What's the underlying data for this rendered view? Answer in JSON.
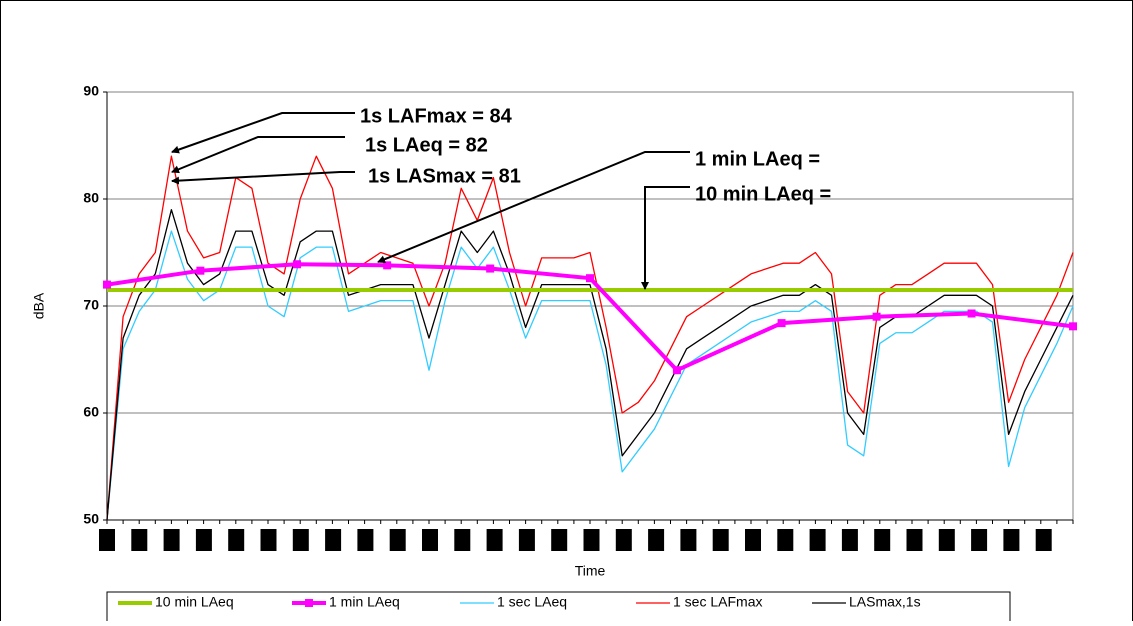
{
  "chart_data": {
    "type": "line",
    "y_label": "dBA",
    "x_label": "Time",
    "xlim": [
      0,
      600
    ],
    "ylim": [
      50,
      90
    ],
    "yticks": [
      50,
      60,
      70,
      80,
      90
    ],
    "grid": true,
    "legend": "bottom",
    "annotations": [
      "1s LAFmax =  84",
      "1s LAeq = 82",
      "1s LASmax =  81",
      "1 min LAeq =",
      "10 min LAeq ="
    ],
    "series": [
      {
        "name": "10 min LAeq",
        "color": "#99cc00",
        "x": [
          0,
          600
        ],
        "values": [
          71.5,
          71.5
        ]
      },
      {
        "name": "1 min LAeq",
        "color": "#ff00ff",
        "markers": true,
        "x": [
          0,
          58,
          118,
          174,
          238,
          300,
          354,
          419,
          478,
          537,
          600
        ],
        "values": [
          72,
          73.3,
          73.9,
          73.8,
          73.5,
          72.6,
          64,
          68.4,
          69,
          69.3,
          68.1
        ]
      },
      {
        "name": "1 sec LAeq",
        "color": "#33ccff",
        "x": [
          0,
          10,
          20,
          30,
          40,
          50,
          60,
          70,
          80,
          90,
          100,
          110,
          120,
          130,
          140,
          150,
          160,
          170,
          180,
          190,
          200,
          210,
          220,
          230,
          240,
          250,
          260,
          270,
          280,
          290,
          300,
          310,
          320,
          330,
          340,
          350,
          360,
          370,
          380,
          390,
          400,
          410,
          420,
          430,
          440,
          450,
          460,
          470,
          480,
          490,
          500,
          510,
          520,
          530,
          540,
          550,
          560,
          570,
          580,
          590,
          600
        ],
        "values": [
          50,
          66,
          69.5,
          71.5,
          77,
          72.5,
          70.5,
          71.5,
          75.5,
          75.5,
          70,
          69,
          74.5,
          75.5,
          75.5,
          69.5,
          70,
          70.5,
          70.5,
          70.5,
          64,
          70.5,
          75.5,
          73.5,
          75.5,
          71.5,
          67,
          70.5,
          70.5,
          70.5,
          70.5,
          64.5,
          54.5,
          56.5,
          58.5,
          61.5,
          64.5,
          65.5,
          66.5,
          67.5,
          68.5,
          69,
          69.5,
          69.5,
          70.5,
          69.5,
          57,
          56,
          66.5,
          67.5,
          67.5,
          68.5,
          69.5,
          69.5,
          69.5,
          68.5,
          55,
          60.5,
          63.5,
          66.5,
          70
        ]
      },
      {
        "name": "1 sec LAFmax",
        "color": "#ff0000",
        "x": [
          0,
          10,
          20,
          30,
          40,
          50,
          60,
          70,
          80,
          90,
          100,
          110,
          120,
          130,
          140,
          150,
          160,
          170,
          180,
          190,
          200,
          210,
          220,
          230,
          240,
          250,
          260,
          270,
          280,
          290,
          300,
          310,
          320,
          330,
          340,
          350,
          360,
          370,
          380,
          390,
          400,
          410,
          420,
          430,
          440,
          450,
          460,
          470,
          480,
          490,
          500,
          510,
          520,
          530,
          540,
          550,
          560,
          570,
          580,
          590,
          600
        ],
        "values": [
          50,
          69,
          73,
          75,
          84,
          77,
          74.5,
          75,
          82,
          81,
          74,
          73,
          80,
          84,
          81,
          73,
          74,
          75,
          74.5,
          74,
          70,
          74,
          81,
          78,
          82,
          75,
          70,
          74.5,
          74.5,
          74.5,
          75,
          68,
          60,
          61,
          63,
          66,
          69,
          70,
          71,
          72,
          73,
          73.5,
          74,
          74,
          75,
          73,
          62,
          60,
          71,
          72,
          72,
          73,
          74,
          74,
          74,
          72,
          61,
          65,
          68,
          71,
          75
        ]
      },
      {
        "name": "LASmax,1s",
        "color": "#000000",
        "x": [
          0,
          10,
          20,
          30,
          40,
          50,
          60,
          70,
          80,
          90,
          100,
          110,
          120,
          130,
          140,
          150,
          160,
          170,
          180,
          190,
          200,
          210,
          220,
          230,
          240,
          250,
          260,
          270,
          280,
          290,
          300,
          310,
          320,
          330,
          340,
          350,
          360,
          370,
          380,
          390,
          400,
          410,
          420,
          430,
          440,
          450,
          460,
          470,
          480,
          490,
          500,
          510,
          520,
          530,
          540,
          550,
          560,
          570,
          580,
          590,
          600
        ],
        "values": [
          50,
          67,
          71,
          73,
          79,
          74,
          72,
          73,
          77,
          77,
          72,
          71,
          76,
          77,
          77,
          71,
          71.5,
          72,
          72,
          72,
          67,
          72,
          77,
          75,
          77,
          73,
          68,
          72,
          72,
          72,
          72,
          66,
          56,
          58,
          60,
          63,
          66,
          67,
          68,
          69,
          70,
          70.5,
          71,
          71,
          72,
          71,
          60,
          58,
          68,
          69,
          69,
          70,
          71,
          71,
          71,
          70,
          58,
          62,
          65,
          68,
          71
        ]
      }
    ]
  }
}
